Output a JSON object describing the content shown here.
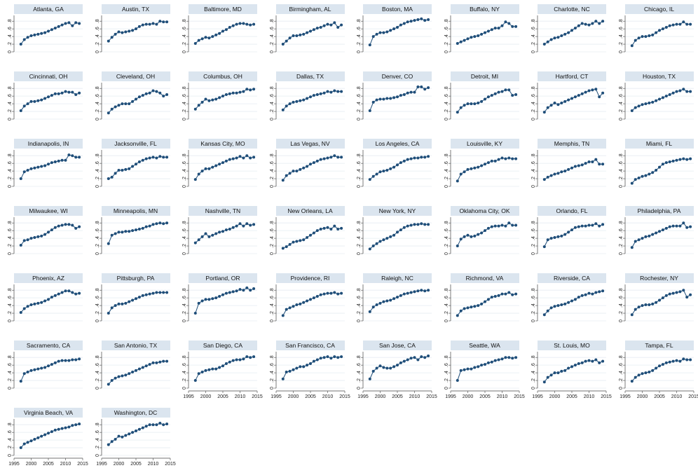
{
  "chart_data": {
    "type": "line",
    "layout": "small-multiples",
    "x": [
      1997,
      1998,
      1999,
      2000,
      2001,
      2002,
      2003,
      2004,
      2005,
      2006,
      2007,
      2008,
      2009,
      2010,
      2011,
      2012,
      2013,
      2014
    ],
    "xticks": [
      1995,
      2000,
      2005,
      2010,
      2015
    ],
    "yticks": [
      0,
      0.2,
      0.4,
      0.6,
      0.8
    ],
    "ytick_labels": [
      "0",
      ".2",
      ".4",
      ".6",
      ".8"
    ],
    "ylim": [
      0,
      0.95
    ],
    "xlim": [
      1995,
      2015
    ],
    "grid": true,
    "marker": "circle",
    "color": "#1f4e79",
    "series": [
      {
        "name": "Atlanta, GA",
        "values": [
          0.2,
          0.32,
          0.38,
          0.42,
          0.44,
          0.46,
          0.48,
          0.5,
          0.54,
          0.58,
          0.62,
          0.66,
          0.7,
          0.74,
          0.76,
          0.68,
          0.76,
          0.74
        ]
      },
      {
        "name": "Austin, TX",
        "values": [
          0.28,
          0.38,
          0.46,
          0.52,
          0.5,
          0.52,
          0.54,
          0.56,
          0.6,
          0.66,
          0.7,
          0.72,
          0.72,
          0.74,
          0.72,
          0.8,
          0.78,
          0.78
        ]
      },
      {
        "name": "Baltimore, MD",
        "values": [
          0.22,
          0.3,
          0.34,
          0.38,
          0.36,
          0.4,
          0.44,
          0.48,
          0.54,
          0.58,
          0.64,
          0.68,
          0.72,
          0.74,
          0.74,
          0.72,
          0.7,
          0.72
        ]
      },
      {
        "name": "Birmingham, AL",
        "values": [
          0.2,
          0.28,
          0.36,
          0.42,
          0.42,
          0.44,
          0.46,
          0.5,
          0.54,
          0.58,
          0.62,
          0.64,
          0.68,
          0.72,
          0.7,
          0.76,
          0.64,
          0.7
        ]
      },
      {
        "name": "Boston, MA",
        "values": [
          0.18,
          0.4,
          0.46,
          0.5,
          0.5,
          0.52,
          0.56,
          0.6,
          0.64,
          0.7,
          0.74,
          0.78,
          0.8,
          0.82,
          0.84,
          0.86,
          0.82,
          0.84
        ]
      },
      {
        "name": "Buffalo, NY",
        "values": [
          0.22,
          0.26,
          0.3,
          0.34,
          0.38,
          0.4,
          0.42,
          0.46,
          0.5,
          0.54,
          0.58,
          0.62,
          0.62,
          0.68,
          0.78,
          0.74,
          0.66,
          0.66
        ]
      },
      {
        "name": "Charlotte, NC",
        "values": [
          0.2,
          0.26,
          0.32,
          0.36,
          0.38,
          0.42,
          0.46,
          0.5,
          0.56,
          0.62,
          0.68,
          0.74,
          0.72,
          0.7,
          0.74,
          0.8,
          0.74,
          0.8
        ]
      },
      {
        "name": "Chicago, IL",
        "values": [
          0.16,
          0.3,
          0.36,
          0.4,
          0.4,
          0.42,
          0.44,
          0.5,
          0.56,
          0.6,
          0.64,
          0.68,
          0.7,
          0.72,
          0.72,
          0.78,
          0.72,
          0.72
        ]
      },
      {
        "name": "Cincinnati, OH",
        "values": [
          0.22,
          0.34,
          0.4,
          0.46,
          0.46,
          0.48,
          0.5,
          0.54,
          0.58,
          0.62,
          0.66,
          0.66,
          0.68,
          0.72,
          0.7,
          0.7,
          0.64,
          0.68
        ]
      },
      {
        "name": "Cleveland, OH",
        "values": [
          0.16,
          0.26,
          0.32,
          0.36,
          0.4,
          0.4,
          0.4,
          0.46,
          0.52,
          0.58,
          0.62,
          0.66,
          0.68,
          0.74,
          0.72,
          0.68,
          0.6,
          0.64
        ]
      },
      {
        "name": "Columbus, OH",
        "values": [
          0.26,
          0.36,
          0.44,
          0.52,
          0.48,
          0.5,
          0.52,
          0.56,
          0.6,
          0.64,
          0.66,
          0.68,
          0.68,
          0.7,
          0.72,
          0.78,
          0.76,
          0.78
        ]
      },
      {
        "name": "Dallas, TX",
        "values": [
          0.24,
          0.34,
          0.4,
          0.44,
          0.46,
          0.48,
          0.5,
          0.54,
          0.58,
          0.62,
          0.64,
          0.66,
          0.68,
          0.72,
          0.7,
          0.74,
          0.72,
          0.72
        ]
      },
      {
        "name": "Denver, CO",
        "values": [
          0.22,
          0.44,
          0.5,
          0.52,
          0.52,
          0.54,
          0.54,
          0.56,
          0.58,
          0.62,
          0.64,
          0.68,
          0.7,
          0.7,
          0.84,
          0.84,
          0.78,
          0.82
        ]
      },
      {
        "name": "Detroit, MI",
        "values": [
          0.18,
          0.3,
          0.36,
          0.4,
          0.4,
          0.4,
          0.42,
          0.46,
          0.52,
          0.58,
          0.62,
          0.66,
          0.7,
          0.72,
          0.76,
          0.76,
          0.62,
          0.64
        ]
      },
      {
        "name": "Hartford, CT",
        "values": [
          0.18,
          0.3,
          0.36,
          0.42,
          0.38,
          0.42,
          0.46,
          0.5,
          0.54,
          0.58,
          0.62,
          0.66,
          0.7,
          0.74,
          0.76,
          0.78,
          0.58,
          0.68
        ]
      },
      {
        "name": "Houston, TX",
        "values": [
          0.22,
          0.3,
          0.34,
          0.38,
          0.4,
          0.42,
          0.44,
          0.48,
          0.52,
          0.56,
          0.6,
          0.64,
          0.68,
          0.72,
          0.74,
          0.78,
          0.72,
          0.72
        ]
      },
      {
        "name": "Indianapolis, IN",
        "values": [
          0.2,
          0.38,
          0.42,
          0.46,
          0.48,
          0.5,
          0.52,
          0.54,
          0.58,
          0.62,
          0.64,
          0.66,
          0.68,
          0.68,
          0.82,
          0.8,
          0.76,
          0.76
        ]
      },
      {
        "name": "Jacksonville, FL",
        "values": [
          0.2,
          0.24,
          0.34,
          0.42,
          0.42,
          0.44,
          0.46,
          0.52,
          0.58,
          0.64,
          0.68,
          0.72,
          0.74,
          0.76,
          0.74,
          0.78,
          0.76,
          0.76
        ]
      },
      {
        "name": "Kansas City, MO",
        "values": [
          0.18,
          0.32,
          0.4,
          0.46,
          0.46,
          0.5,
          0.54,
          0.58,
          0.62,
          0.66,
          0.7,
          0.72,
          0.74,
          0.78,
          0.74,
          0.8,
          0.74,
          0.76
        ]
      },
      {
        "name": "Las Vegas, NV",
        "values": [
          0.16,
          0.28,
          0.34,
          0.4,
          0.4,
          0.44,
          0.48,
          0.52,
          0.58,
          0.62,
          0.66,
          0.7,
          0.72,
          0.74,
          0.76,
          0.8,
          0.76,
          0.76
        ]
      },
      {
        "name": "Los Angeles, CA",
        "values": [
          0.18,
          0.26,
          0.32,
          0.38,
          0.4,
          0.42,
          0.46,
          0.5,
          0.56,
          0.62,
          0.66,
          0.7,
          0.72,
          0.74,
          0.74,
          0.76,
          0.76,
          0.78
        ]
      },
      {
        "name": "Louisville, KY",
        "values": [
          0.14,
          0.32,
          0.38,
          0.44,
          0.46,
          0.48,
          0.5,
          0.54,
          0.58,
          0.62,
          0.66,
          0.66,
          0.7,
          0.74,
          0.72,
          0.74,
          0.72,
          0.72
        ]
      },
      {
        "name": "Memphis, TN",
        "values": [
          0.18,
          0.24,
          0.28,
          0.32,
          0.34,
          0.38,
          0.4,
          0.44,
          0.48,
          0.52,
          0.54,
          0.56,
          0.6,
          0.64,
          0.64,
          0.7,
          0.58,
          0.58
        ]
      },
      {
        "name": "Miami, FL",
        "values": [
          0.08,
          0.18,
          0.22,
          0.26,
          0.28,
          0.32,
          0.36,
          0.42,
          0.5,
          0.58,
          0.62,
          0.64,
          0.66,
          0.68,
          0.7,
          0.72,
          0.7,
          0.72
        ]
      },
      {
        "name": "Milwaukee, WI",
        "values": [
          0.22,
          0.34,
          0.36,
          0.4,
          0.42,
          0.44,
          0.46,
          0.5,
          0.56,
          0.62,
          0.68,
          0.72,
          0.74,
          0.76,
          0.76,
          0.74,
          0.66,
          0.7
        ]
      },
      {
        "name": "Minneapolis, MN",
        "values": [
          0.26,
          0.48,
          0.52,
          0.56,
          0.56,
          0.58,
          0.58,
          0.6,
          0.62,
          0.64,
          0.66,
          0.7,
          0.72,
          0.76,
          0.78,
          0.8,
          0.78,
          0.8
        ]
      },
      {
        "name": "Nashville, TN",
        "values": [
          0.28,
          0.36,
          0.44,
          0.52,
          0.44,
          0.48,
          0.52,
          0.56,
          0.58,
          0.62,
          0.64,
          0.68,
          0.72,
          0.78,
          0.72,
          0.78,
          0.74,
          0.76
        ]
      },
      {
        "name": "New Orleans, LA",
        "values": [
          0.14,
          0.18,
          0.24,
          0.3,
          0.32,
          0.34,
          0.36,
          0.42,
          0.48,
          0.54,
          0.6,
          0.64,
          0.66,
          0.68,
          0.64,
          0.72,
          0.64,
          0.66
        ]
      },
      {
        "name": "New York, NY",
        "values": [
          0.12,
          0.2,
          0.26,
          0.32,
          0.36,
          0.4,
          0.44,
          0.48,
          0.56,
          0.62,
          0.68,
          0.72,
          0.74,
          0.76,
          0.76,
          0.78,
          0.76,
          0.76
        ]
      },
      {
        "name": "Oklahoma City, OK",
        "values": [
          0.2,
          0.38,
          0.44,
          0.48,
          0.44,
          0.46,
          0.5,
          0.54,
          0.6,
          0.66,
          0.7,
          0.72,
          0.72,
          0.74,
          0.72,
          0.8,
          0.74,
          0.74
        ]
      },
      {
        "name": "Orlando, FL",
        "values": [
          0.18,
          0.36,
          0.4,
          0.42,
          0.44,
          0.46,
          0.5,
          0.56,
          0.62,
          0.68,
          0.7,
          0.72,
          0.72,
          0.74,
          0.74,
          0.78,
          0.72,
          0.76
        ]
      },
      {
        "name": "Philadelphia, PA",
        "values": [
          0.16,
          0.32,
          0.36,
          0.4,
          0.44,
          0.46,
          0.5,
          0.54,
          0.58,
          0.62,
          0.66,
          0.7,
          0.72,
          0.72,
          0.72,
          0.8,
          0.68,
          0.7
        ]
      },
      {
        "name": "Phoenix, AZ",
        "values": [
          0.22,
          0.32,
          0.38,
          0.42,
          0.44,
          0.46,
          0.48,
          0.52,
          0.56,
          0.62,
          0.66,
          0.7,
          0.74,
          0.78,
          0.78,
          0.74,
          0.7,
          0.72
        ]
      },
      {
        "name": "Pittsburgh, PA",
        "values": [
          0.2,
          0.34,
          0.4,
          0.44,
          0.44,
          0.46,
          0.5,
          0.54,
          0.58,
          0.62,
          0.66,
          0.68,
          0.7,
          0.72,
          0.74,
          0.74,
          0.74,
          0.74
        ]
      },
      {
        "name": "Portland, OR",
        "values": [
          0.2,
          0.46,
          0.52,
          0.56,
          0.56,
          0.58,
          0.6,
          0.64,
          0.68,
          0.72,
          0.74,
          0.76,
          0.78,
          0.82,
          0.8,
          0.86,
          0.8,
          0.84
        ]
      },
      {
        "name": "Providence, RI",
        "values": [
          0.14,
          0.3,
          0.34,
          0.38,
          0.42,
          0.44,
          0.48,
          0.52,
          0.56,
          0.6,
          0.64,
          0.68,
          0.7,
          0.72,
          0.72,
          0.74,
          0.7,
          0.72
        ]
      },
      {
        "name": "Raleigh, NC",
        "values": [
          0.24,
          0.36,
          0.42,
          0.46,
          0.5,
          0.52,
          0.54,
          0.58,
          0.62,
          0.66,
          0.7,
          0.72,
          0.74,
          0.76,
          0.78,
          0.8,
          0.78,
          0.8
        ]
      },
      {
        "name": "Richmond, VA",
        "values": [
          0.14,
          0.26,
          0.32,
          0.34,
          0.36,
          0.38,
          0.4,
          0.44,
          0.5,
          0.56,
          0.62,
          0.64,
          0.66,
          0.7,
          0.7,
          0.74,
          0.68,
          0.7
        ]
      },
      {
        "name": "Riverside, CA",
        "values": [
          0.16,
          0.26,
          0.34,
          0.38,
          0.4,
          0.42,
          0.44,
          0.48,
          0.52,
          0.56,
          0.62,
          0.66,
          0.68,
          0.72,
          0.7,
          0.74,
          0.76,
          0.78
        ]
      },
      {
        "name": "Rochester, NY",
        "values": [
          0.16,
          0.3,
          0.36,
          0.4,
          0.42,
          0.42,
          0.44,
          0.48,
          0.54,
          0.6,
          0.66,
          0.7,
          0.72,
          0.74,
          0.76,
          0.8,
          0.62,
          0.68
        ]
      },
      {
        "name": "Sacramento, CA",
        "values": [
          0.18,
          0.38,
          0.42,
          0.46,
          0.48,
          0.5,
          0.52,
          0.54,
          0.58,
          0.62,
          0.66,
          0.7,
          0.72,
          0.72,
          0.72,
          0.74,
          0.74,
          0.76
        ]
      },
      {
        "name": "San Antonio, TX",
        "values": [
          0.1,
          0.2,
          0.26,
          0.3,
          0.32,
          0.34,
          0.38,
          0.42,
          0.46,
          0.5,
          0.54,
          0.58,
          0.62,
          0.66,
          0.66,
          0.68,
          0.7,
          0.7
        ]
      },
      {
        "name": "San Diego, CA",
        "values": [
          0.2,
          0.38,
          0.42,
          0.46,
          0.48,
          0.5,
          0.5,
          0.54,
          0.58,
          0.64,
          0.68,
          0.72,
          0.74,
          0.74,
          0.76,
          0.82,
          0.8,
          0.82
        ]
      },
      {
        "name": "San Francisco, CA",
        "values": [
          0.24,
          0.42,
          0.44,
          0.48,
          0.52,
          0.56,
          0.56,
          0.6,
          0.64,
          0.7,
          0.74,
          0.78,
          0.8,
          0.82,
          0.78,
          0.82,
          0.8,
          0.82
        ]
      },
      {
        "name": "San Jose, CA",
        "values": [
          0.24,
          0.44,
          0.52,
          0.58,
          0.54,
          0.52,
          0.52,
          0.56,
          0.6,
          0.66,
          0.7,
          0.74,
          0.78,
          0.8,
          0.74,
          0.82,
          0.8,
          0.84
        ]
      },
      {
        "name": "Seattle, WA",
        "values": [
          0.2,
          0.46,
          0.48,
          0.5,
          0.5,
          0.54,
          0.56,
          0.6,
          0.62,
          0.66,
          0.68,
          0.72,
          0.74,
          0.76,
          0.8,
          0.8,
          0.78,
          0.8
        ]
      },
      {
        "name": "St. Louis, MO",
        "values": [
          0.16,
          0.28,
          0.34,
          0.4,
          0.4,
          0.44,
          0.46,
          0.52,
          0.56,
          0.6,
          0.64,
          0.66,
          0.7,
          0.72,
          0.7,
          0.74,
          0.66,
          0.7
        ]
      },
      {
        "name": "Tampa, FL",
        "values": [
          0.18,
          0.28,
          0.34,
          0.38,
          0.4,
          0.42,
          0.46,
          0.52,
          0.58,
          0.62,
          0.66,
          0.68,
          0.7,
          0.72,
          0.7,
          0.76,
          0.74,
          0.74
        ]
      },
      {
        "name": "Virginia Beach, VA",
        "values": [
          0.2,
          0.3,
          0.34,
          0.38,
          0.42,
          0.46,
          0.5,
          0.54,
          0.58,
          0.62,
          0.66,
          0.68,
          0.7,
          0.72,
          0.74,
          0.78,
          0.8,
          0.82
        ]
      },
      {
        "name": "Washington, DC",
        "values": [
          0.28,
          0.36,
          0.42,
          0.5,
          0.48,
          0.52,
          0.56,
          0.6,
          0.64,
          0.68,
          0.72,
          0.76,
          0.8,
          0.8,
          0.8,
          0.84,
          0.8,
          0.82
        ]
      }
    ]
  }
}
